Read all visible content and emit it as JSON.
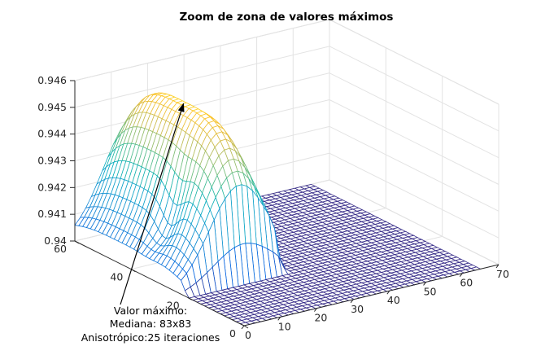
{
  "chart_data": {
    "type": "surface",
    "title": "Zoom de zona de valores máximos",
    "x_axis": {
      "range": [
        0,
        70
      ],
      "ticks": [
        "0",
        "10",
        "20",
        "30",
        "40",
        "50",
        "60",
        "70"
      ]
    },
    "y_axis": {
      "range": [
        0,
        60
      ],
      "ticks": [
        "0",
        "20",
        "40",
        "60"
      ]
    },
    "z_axis": {
      "range": [
        0.94,
        0.946
      ],
      "ticks": [
        "0.94",
        "0.941",
        "0.942",
        "0.943",
        "0.944",
        "0.945",
        "0.946"
      ]
    },
    "grid": true,
    "colormap": "parula",
    "surface": {
      "grid_size": [
        83,
        83
      ],
      "peak": {
        "x": 16,
        "y": 42,
        "z": 0.9456
      },
      "floor_value": 0.94,
      "plateau_x_range": [
        0,
        28
      ],
      "plateau_y_range": [
        20,
        60
      ]
    },
    "annotation": {
      "lines": [
        "Valor máximo:",
        "Mediana: 83x83",
        "Anisotrópico:25 iteraciones"
      ],
      "arrow_to": {
        "x": 16,
        "y": 42,
        "z": 0.9456
      }
    }
  }
}
